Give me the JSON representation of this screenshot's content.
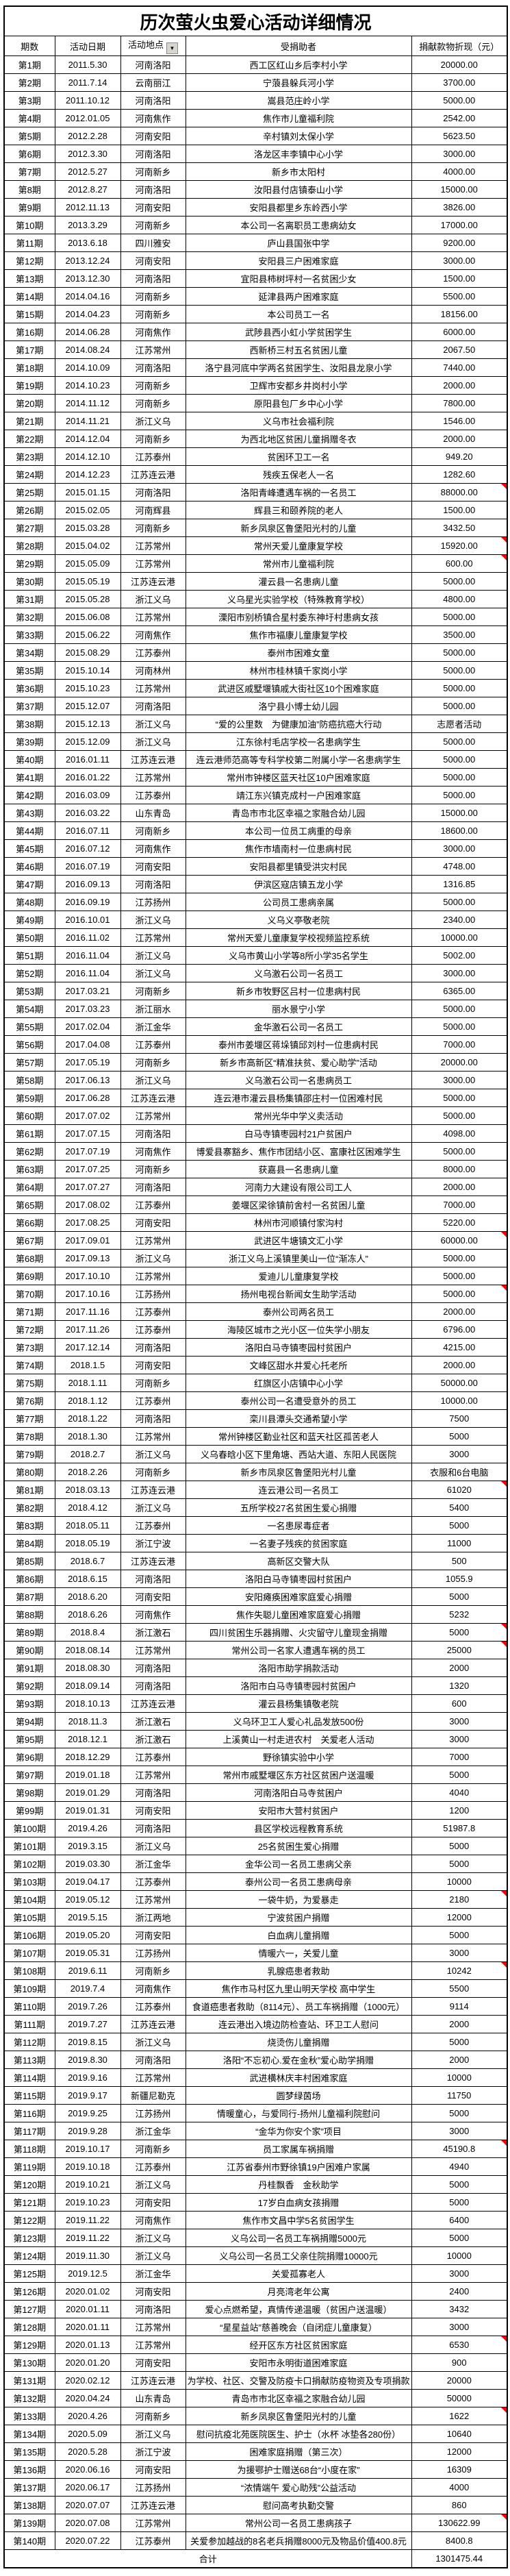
{
  "title": "历次萤火虫爱心活动详细情况",
  "columns": [
    "期数",
    "活动日期",
    "活动地点",
    "受捐助者",
    "捐献款物折现（元）"
  ],
  "filter_on_column": "活动地点",
  "total_label": "合计",
  "total_value": "1301475.44",
  "marker_color": "#ff0000",
  "row_fields": [
    "period",
    "date",
    "location",
    "recipient",
    "amount",
    "has_comment_marker"
  ],
  "rows": [
    [
      "第1期",
      "2011.5.30",
      "河南洛阳",
      "西工区红山乡后李村小学",
      "20000.00",
      0
    ],
    [
      "第2期",
      "2011.7.14",
      "云南丽江",
      "宁蒗县躲兵河小学",
      "3700.00",
      0
    ],
    [
      "第3期",
      "2011.10.12",
      "河南洛阳",
      "嵩县范庄岭小学",
      "5000.00",
      0
    ],
    [
      "第4期",
      "2012.01.05",
      "河南焦作",
      "焦作市儿童福利院",
      "2542.00",
      0
    ],
    [
      "第5期",
      "2012.2.28",
      "河南安阳",
      "辛村镇刘太保小学",
      "5623.50",
      0
    ],
    [
      "第6期",
      "2012.3.30",
      "河南洛阳",
      "洛龙区丰李镇中心小学",
      "3000.00",
      0
    ],
    [
      "第7期",
      "2012.5.27",
      "河南新乡",
      "新乡市太阳村",
      "4000.00",
      0
    ],
    [
      "第8期",
      "2012.8.27",
      "河南洛阳",
      "汝阳县付店镇泰山小学",
      "15000.00",
      0
    ],
    [
      "第9期",
      "2012.11.13",
      "河南安阳",
      "安阳县都里乡东岭西小学",
      "3826.00",
      0
    ],
    [
      "第10期",
      "2013.3.29",
      "河南新乡",
      "本公司一名离职员工患病幼女",
      "17000.00",
      0
    ],
    [
      "第11期",
      "2013.6.18",
      "四川雅安",
      "庐山县国张中学",
      "9200.00",
      0
    ],
    [
      "第12期",
      "2013.12.24",
      "河南安阳",
      "安阳县三户困难家庭",
      "3000.00",
      0
    ],
    [
      "第13期",
      "2013.12.30",
      "河南洛阳",
      "宜阳县柿树坪村一名贫困少女",
      "1500.00",
      0
    ],
    [
      "第14期",
      "2014.04.16",
      "河南新乡",
      "延津县两户困难家庭",
      "5500.00",
      0
    ],
    [
      "第15期",
      "2014.04.23",
      "河南新乡",
      "本公司员工一名",
      "18156.00",
      0
    ],
    [
      "第16期",
      "2014.06.28",
      "河南焦作",
      "武陟县西小虹小学贫困学生",
      "6000.00",
      0
    ],
    [
      "第17期",
      "2014.08.24",
      "江苏常州",
      "西新桥三村五名贫困儿童",
      "2067.50",
      0
    ],
    [
      "第18期",
      "2014.10.09",
      "河南洛阳",
      "洛宁县河底中学两名贫困学生、汝阳县龙泉小学",
      "7440.00",
      0
    ],
    [
      "第19期",
      "2014.10.23",
      "河南新乡",
      "卫辉市安都乡井岗村小学",
      "2000.00",
      0
    ],
    [
      "第20期",
      "2014.11.12",
      "河南新乡",
      "原阳县包厂乡中心小学",
      "7800.00",
      0
    ],
    [
      "第21期",
      "2014.11.21",
      "浙江义乌",
      "义乌市社会福利院",
      "1546.00",
      0
    ],
    [
      "第22期",
      "2014.12.04",
      "河南新乡",
      "为西北地区贫困儿童捐赠冬衣",
      "2000.00",
      0
    ],
    [
      "第23期",
      "2014.12.10",
      "江苏泰州",
      "贫困环卫工一名",
      "949.20",
      0
    ],
    [
      "第24期",
      "2014.12.23",
      "江苏连云港",
      "残疾五保老人一名",
      "1282.60",
      0
    ],
    [
      "第25期",
      "2015.01.15",
      "河南洛阳",
      "洛阳青峰遭遇车祸的一名员工",
      "88000.00",
      1
    ],
    [
      "第26期",
      "2015.02.05",
      "河南辉县",
      "辉县三和颐养院的老人",
      "1500.00",
      0
    ],
    [
      "第27期",
      "2015.03.28",
      "河南新乡",
      "新乡凤泉区鲁堡阳光村的儿童",
      "3432.50",
      0
    ],
    [
      "第28期",
      "2015.04.02",
      "江苏常州",
      "常州天爱儿童康复学校",
      "15920.00",
      1
    ],
    [
      "第29期",
      "2015.05.09",
      "江苏常州",
      "常州市儿童福利院",
      "600.00",
      1
    ],
    [
      "第30期",
      "2015.05.19",
      "江苏连云港",
      "灌云县一名患病儿童",
      "5000.00",
      0
    ],
    [
      "第31期",
      "2015.05.28",
      "浙江义乌",
      "义乌星光实验学校（特殊教育学校）",
      "4800.00",
      0
    ],
    [
      "第32期",
      "2015.06.08",
      "江苏常州",
      "溧阳市别桥镇合星村委东神圩村患病女孩",
      "5000.00",
      0
    ],
    [
      "第33期",
      "2015.06.22",
      "河南焦作",
      "焦作市福康儿童康复学校",
      "3500.00",
      0
    ],
    [
      "第34期",
      "2015.08.29",
      "江苏泰州",
      "泰州市困难女童",
      "5000.00",
      0
    ],
    [
      "第35期",
      "2015.10.14",
      "河南林州",
      "林州市桂林镇千家岗小学",
      "5000.00",
      0
    ],
    [
      "第36期",
      "2015.10.23",
      "江苏常州",
      "武进区戚墅堰镇戚大街社区10个困难家庭",
      "5000.00",
      0
    ],
    [
      "第37期",
      "2015.12.07",
      "河南洛阳",
      "洛宁县小博士幼儿园",
      "5000.00",
      0
    ],
    [
      "第38期",
      "2015.12.13",
      "浙江义乌",
      "“爱的公里数　为健康加油”防癌抗癌大行动",
      "志愿者活动",
      0
    ],
    [
      "第39期",
      "2015.12.09",
      "浙江义乌",
      "江东徐村毛店学校一名患病学生",
      "5000.00",
      0
    ],
    [
      "第40期",
      "2016.01.11",
      "江苏连云港",
      "连云港师范高等专科学校第二附属小学一名患病学生",
      "5000.00",
      0
    ],
    [
      "第41期",
      "2016.01.22",
      "江苏常州",
      "常州市钟楼区蓝天社区10户困难家庭",
      "5000.00",
      0
    ],
    [
      "第42期",
      "2016.03.09",
      "江苏泰州",
      "靖江东兴镇克成村一户困难家庭",
      "5000.00",
      0
    ],
    [
      "第43期",
      "2016.03.22",
      "山东青岛",
      "青岛市市北区幸福之家融合幼儿园",
      "15000.00",
      0
    ],
    [
      "第44期",
      "2016.07.11",
      "河南新乡",
      "本公司一位员工病重的母亲",
      "18600.00",
      0
    ],
    [
      "第45期",
      "2016.07.12",
      "河南焦作",
      "焦作市墙南村一位患病村民",
      "3000.00",
      0
    ],
    [
      "第46期",
      "2016.07.19",
      "河南安阳",
      "安阳县都里镇受洪灾村民",
      "4748.00",
      0
    ],
    [
      "第47期",
      "2016.09.13",
      "河南洛阳",
      "伊滨区寇店镇五龙小学",
      "1316.85",
      0
    ],
    [
      "第48期",
      "2016.09.19",
      "江苏扬州",
      "公司员工患病亲属",
      "5000.00",
      0
    ],
    [
      "第49期",
      "2016.10.01",
      "浙江义乌",
      "义乌义亭敬老院",
      "2340.00",
      0
    ],
    [
      "第50期",
      "2016.11.02",
      "江苏常州",
      "常州天爱儿童康复学校视频监控系统",
      "10000.00",
      0
    ],
    [
      "第51期",
      "2016.11.04",
      "浙江义乌",
      "义乌市黄山小学等8所小学35名学生",
      "5002.00",
      0
    ],
    [
      "第52期",
      "2016.11.04",
      "浙江义乌",
      "义乌激石公司一名员工",
      "3000.00",
      0
    ],
    [
      "第53期",
      "2017.03.21",
      "河南新乡",
      "新乡市牧野区吕村一位患病村民",
      "6365.00",
      0
    ],
    [
      "第54期",
      "2017.03.23",
      "浙江丽水",
      "丽水景宁小学",
      "5000.00",
      0
    ],
    [
      "第55期",
      "2017.02.04",
      "浙江金华",
      "金华激石公司一名员工",
      "5000.00",
      0
    ],
    [
      "第56期",
      "2017.04.08",
      "江苏泰州",
      "泰州市姜堰区蒋垛镇邱刘村一位患病村民",
      "7000.00",
      0
    ],
    [
      "第57期",
      "2017.05.19",
      "河南新乡",
      "新乡市高新区“精准扶贫、爱心助学”活动",
      "20000.00",
      0
    ],
    [
      "第58期",
      "2017.06.13",
      "浙江义乌",
      "义乌激石公司一名患病员工",
      "3000.00",
      0
    ],
    [
      "第59期",
      "2017.06.28",
      "江苏连云港",
      "连云港市灌云县杨集镇邵庄村一位困难村民",
      "5000.00",
      0
    ],
    [
      "第60期",
      "2017.07.02",
      "江苏常州",
      "常州光华中学义卖活动",
      "5000.00",
      0
    ],
    [
      "第61期",
      "2017.07.15",
      "河南洛阳",
      "白马寺镇枣园村21户贫困户",
      "4098.00",
      0
    ],
    [
      "第62期",
      "2017.07.19",
      "河南焦作",
      "博爱县寨豁乡、焦作市团结小区、富康社区困难学生",
      "5000.00",
      0
    ],
    [
      "第63期",
      "2017.07.25",
      "河南新乡",
      "获嘉县一名患病儿童",
      "8000.00",
      0
    ],
    [
      "第64期",
      "2017.07.27",
      "河南洛阳",
      "河南力大建设有限公司工人",
      "2000.00",
      0
    ],
    [
      "第65期",
      "2017.08.02",
      "江苏泰州",
      "姜堰区梁徐镇前舍村一名贫困儿童",
      "7000.00",
      0
    ],
    [
      "第66期",
      "2017.08.25",
      "河南安阳",
      "林州市河顺镇付家沟村",
      "5220.00",
      0
    ],
    [
      "第67期",
      "2017.09.01",
      "江苏常州",
      "武进区牛塘镇文汇小学",
      "60000.00",
      1
    ],
    [
      "第68期",
      "2017.09.13",
      "浙江义乌",
      "浙江义乌上溪镇里美山一位“渐冻人”",
      "5000.00",
      0
    ],
    [
      "第69期",
      "2017.10.10",
      "江苏常州",
      "爱迪儿儿童康复学校",
      "5000.00",
      0
    ],
    [
      "第70期",
      "2017.10.16",
      "江苏扬州",
      "扬州电视台新闻女生助学活动",
      "5000.00",
      1
    ],
    [
      "第71期",
      "2017.11.16",
      "江苏泰州",
      "泰州公司两名员工",
      "2000.00",
      0
    ],
    [
      "第72期",
      "2017.11.26",
      "江苏泰州",
      "海陵区城市之光小区一位失学小朋友",
      "6796.00",
      0
    ],
    [
      "第73期",
      "2017.12.14",
      "河南洛阳",
      "洛阳白马寺镇枣园村贫困户",
      "4215.00",
      0
    ],
    [
      "第74期",
      "2018.1.5",
      "河南安阳",
      "文峰区甜水井爱心托老所",
      "2000.00",
      0
    ],
    [
      "第75期",
      "2018.1.11",
      "河南新乡",
      "红旗区小店镇中心小学",
      "50000.00",
      0
    ],
    [
      "第76期",
      "2018.1.12",
      "江苏泰州",
      "泰州公司一名遭受意外的员工",
      "10000.00",
      0
    ],
    [
      "第77期",
      "2018.1.22",
      "河南洛阳",
      "栾川县潭头交通希望小学",
      "7500",
      0
    ],
    [
      "第78期",
      "2018.1.30",
      "江苏常州",
      "常州钟楼区勤业社区和蓝天社区孤苦老人",
      "5000",
      0
    ],
    [
      "第79期",
      "2018.2.7",
      "浙江义乌",
      "义乌春晗小区下里角塘、西站大道、东阳人民医院",
      "3000",
      0
    ],
    [
      "第80期",
      "2018.2.26",
      "河南新乡",
      "新乡市凤泉区鲁堡阳光村儿童",
      "衣服和6台电脑",
      0
    ],
    [
      "第81期",
      "2018.03.13",
      "江苏连云港",
      "连云港公司一名员工",
      "61020",
      1
    ],
    [
      "第82期",
      "2018.4.12",
      "浙江义乌",
      "五所学校27名贫困生爱心捐赠",
      "5400",
      0
    ],
    [
      "第83期",
      "2018.05.11",
      "江苏泰州",
      "一名患尿毒症者",
      "5000",
      0
    ],
    [
      "第84期",
      "2018.05.19",
      "浙江宁波",
      "一名妻子残疾的贫困家庭",
      "11000",
      0
    ],
    [
      "第85期",
      "2018.6.7",
      "江苏连云港",
      "高新区交警大队",
      "500",
      0
    ],
    [
      "第86期",
      "2018.6.15",
      "河南洛阳",
      "洛阳白马寺镇枣园村贫困户",
      "1055.9",
      0
    ],
    [
      "第87期",
      "2018.6.20",
      "河南安阳",
      "安阳瘫痪困难家庭爱心捐赠",
      "5000",
      0
    ],
    [
      "第88期",
      "2018.6.26",
      "河南焦作",
      "焦作失聪儿童困难家庭爱心捐赠",
      "5232",
      0
    ],
    [
      "第89期",
      "2018.8.4",
      "浙江激石",
      "四川贫困生乐器捐赠、火灾留守儿童现金捐赠",
      "5000",
      1
    ],
    [
      "第90期",
      "2018.08.14",
      "江苏常州",
      "常州公司一名家人遭遇车祸的员工",
      "25000",
      1
    ],
    [
      "第91期",
      "2018.08.30",
      "河南洛阳",
      "洛阳市助学捐款活动",
      "2000",
      0
    ],
    [
      "第92期",
      "2018.09.14",
      "河南洛阳",
      "洛阳市白马寺镇枣园村贫困户",
      "1320",
      0
    ],
    [
      "第93期",
      "2018.10.13",
      "江苏连云港",
      "灌云县杨集镇敬老院",
      "600",
      0
    ],
    [
      "第94期",
      "2018.11.3",
      "浙江激石",
      "义乌环卫工人爱心礼品发放500份",
      "3000",
      0
    ],
    [
      "第95期",
      "2018.12.1",
      "浙江激石",
      "上溪黄山一村走进农村　关爱老人活动",
      "3000",
      0
    ],
    [
      "第96期",
      "2018.12.29",
      "江苏泰州",
      "野徐镇实验中小学",
      "7000",
      0
    ],
    [
      "第97期",
      "2019.01.18",
      "江苏常州",
      "常州市戚墅堰区东方社区贫困户送温暖",
      "5000",
      0
    ],
    [
      "第98期",
      "2019.01.29",
      "河南洛阳",
      "河南洛阳白马寺贫困户",
      "4040",
      0
    ],
    [
      "第99期",
      "2019.01.31",
      "河南安阳",
      "安阳市大营村贫困户",
      "1200",
      0
    ],
    [
      "第100期",
      "2019.4.26",
      "河南洛阳",
      "县区学校远程教育系统",
      "51987.8",
      0
    ],
    [
      "第101期",
      "2019.3.15",
      "浙江义乌",
      "25名贫困生爱心捐赠",
      "5000",
      0
    ],
    [
      "第102期",
      "2019.03.30",
      "浙江金华",
      "金华公司一名员工患病父亲",
      "5000",
      0
    ],
    [
      "第103期",
      "2019.04.17",
      "江苏泰州",
      "泰州公司一名员工患病母亲",
      "10000",
      0
    ],
    [
      "第104期",
      "2019.05.12",
      "江苏常州",
      "一袋牛奶，为爱暴走",
      "2180",
      1
    ],
    [
      "第105期",
      "2019.5.15",
      "浙江两地",
      "宁波贫困户捐赠",
      "12000",
      0
    ],
    [
      "第106期",
      "2019.05.20",
      "河南安阳",
      "白血病儿童捐赠",
      "5000",
      0
    ],
    [
      "第107期",
      "2019.05.31",
      "江苏扬州",
      "情暖六一，关爱儿童",
      "3000",
      0
    ],
    [
      "第108期",
      "2019.6.11",
      "河南新乡",
      "乳腺癌患者救助",
      "10242",
      1
    ],
    [
      "第109期",
      "2019.7.4",
      "河南焦作",
      "焦作市马村区九里山明天学校 高中学生",
      "5500",
      0
    ],
    [
      "第110期",
      "2019.7.26",
      "江苏泰州",
      "食道癌患者救助（8114元）、员工车祸捐赠（1000元）",
      "9114",
      0
    ],
    [
      "第111期",
      "2019.7.27",
      "江苏连云港",
      "连云港出入境边防检查站、环卫工人慰问",
      "2000",
      0
    ],
    [
      "第112期",
      "2019.8.15",
      "浙江义乌",
      "烧烫伤儿童捐赠",
      "5000",
      0
    ],
    [
      "第113期",
      "2019.8.30",
      "河南洛阳",
      "洛阳“不忘初心.爱在金秋”爱心助学捐赠",
      "2000",
      0
    ],
    [
      "第114期",
      "2019.9.16",
      "江苏常州",
      "武进横林庆丰村困难家庭",
      "10000",
      0
    ],
    [
      "第115期",
      "2019.9.17",
      "新疆尼勒克",
      "圆梦绿茵场",
      "11750",
      0
    ],
    [
      "第116期",
      "2019.9.25",
      "江苏扬州",
      "情暖童心，与爱同行-扬州儿童福利院慰问",
      "5000",
      0
    ],
    [
      "第117期",
      "2019.9.28",
      "浙江金华",
      "“金华为你安个家”项目",
      "3000",
      0
    ],
    [
      "第118期",
      "2019.10.17",
      "河南新乡",
      "员工家属车祸捐赠",
      "45190.8",
      1
    ],
    [
      "第119期",
      "2019.10.18",
      "江苏泰州",
      "江苏省泰州市野徐镇19户困难户家属",
      "4940",
      0
    ],
    [
      "第120期",
      "2019.10.21",
      "浙江义乌",
      "丹桂飘香　金秋助学",
      "5000",
      0
    ],
    [
      "第121期",
      "2019.10.23",
      "河南安阳",
      "17岁白血病女孩捐赠",
      "5000",
      0
    ],
    [
      "第122期",
      "2019.11.22",
      "河南焦作",
      "焦作市文昌中学5名贫困学生",
      "6400",
      0
    ],
    [
      "第123期",
      "2019.11.22",
      "浙江义乌",
      "义乌公司一名员工车祸捐赠5000元",
      "5000",
      0
    ],
    [
      "第124期",
      "2019.11.30",
      "浙江义乌",
      "义乌公司一名员工父亲住院捐赠10000元",
      "10000",
      0
    ],
    [
      "第125期",
      "2019.12.5",
      "浙江金华",
      "关爱孤寡老人",
      "3000",
      0
    ],
    [
      "第126期",
      "2020.01.02",
      "河南安阳",
      "月亮湾老年公寓",
      "2400",
      0
    ],
    [
      "第127期",
      "2020.01.11",
      "河南洛阳",
      "爱心点燃希望，真情传递温暖（贫困户送温暖）",
      "3432",
      0
    ],
    [
      "第128期",
      "2020.01.11",
      "江苏常州",
      "“星星益站”慈善晚会（自闭症儿童康复）",
      "3000",
      0
    ],
    [
      "第129期",
      "2020.01.13",
      "江苏常州",
      "经开区东方社区贫困家庭",
      "6530",
      1
    ],
    [
      "第130期",
      "2020.01.20",
      "河南安阳",
      "安阳市永明街道困难家庭",
      "900",
      0
    ],
    [
      "第131期",
      "2020.02.12",
      "江苏连云港",
      "为学校、社区、交警及防疫卡口捐献防疫物资及专项捐款",
      "20000",
      0
    ],
    [
      "第132期",
      "2020.04.24",
      "山东青岛",
      "青岛市市北区幸福之家融合幼儿园",
      "50000",
      0
    ],
    [
      "第133期",
      "2020.4.26",
      "河南新乡",
      "新乡凤泉区鲁堡阳光村的儿童",
      "1622",
      1
    ],
    [
      "第134期",
      "2020.5.09",
      "浙江义乌",
      "慰问抗疫北苑医院医生、护士（水杯 冰垫各280份）",
      "10640",
      0
    ],
    [
      "第135期",
      "2020.5.28",
      "浙江宁波",
      "困难家庭捐赠（第三次）",
      "12000",
      0
    ],
    [
      "第136期",
      "2020.06.16",
      "河南安阳",
      "为援鄂护士赠送68台“小度在家”",
      "16309",
      0
    ],
    [
      "第137期",
      "2020.06.17",
      "江苏扬州",
      "“浓情端午 爱心助残”公益活动",
      "4000",
      0
    ],
    [
      "第138期",
      "2020.07.07",
      "江苏连云港",
      "慰问高考执勤交警",
      "860",
      0
    ],
    [
      "第139期",
      "2020.07.08",
      "江苏常州",
      "常州公司一名员工患病孩子",
      "130622.99",
      1
    ],
    [
      "第140期",
      "2020.07.22",
      "江苏泰州",
      "关爱参加越战的8名老兵捐赠8000元及物品价值400.8元",
      "8400.8",
      0
    ]
  ]
}
